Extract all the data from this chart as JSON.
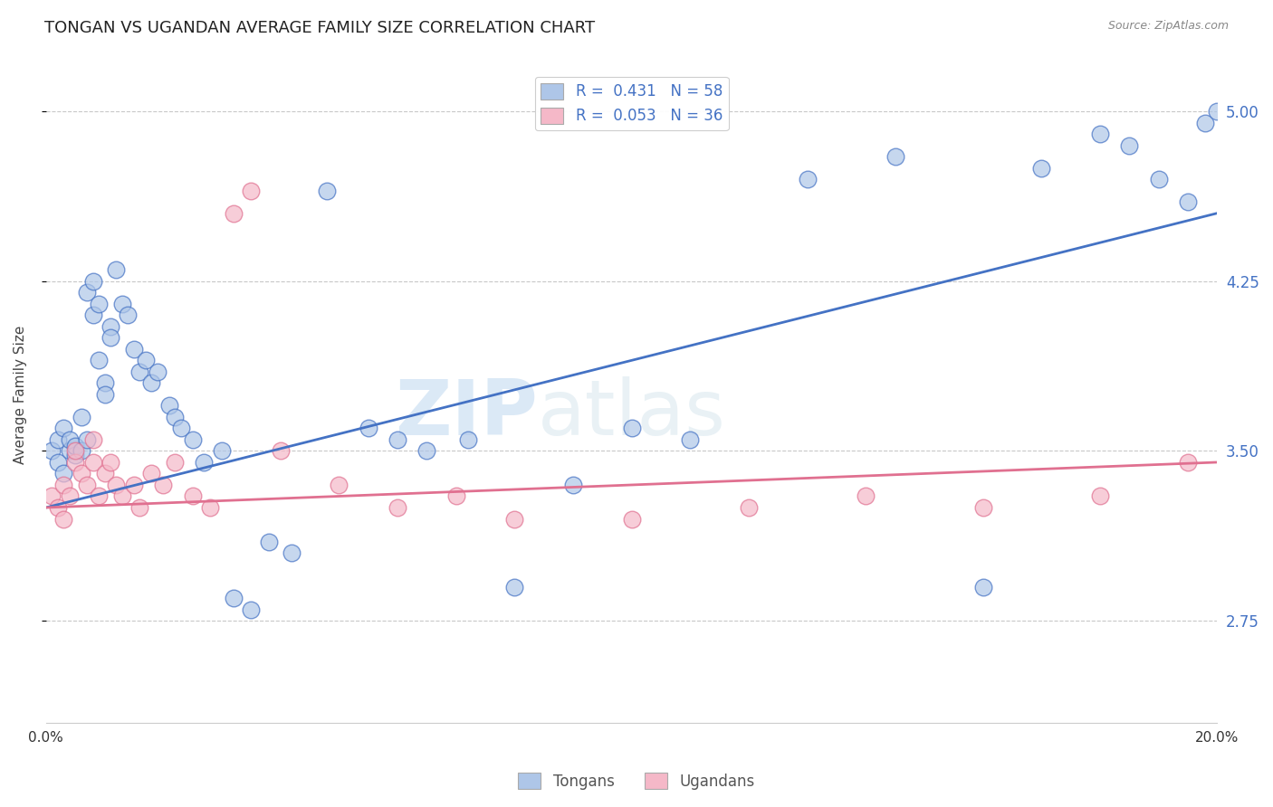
{
  "title": "TONGAN VS UGANDAN AVERAGE FAMILY SIZE CORRELATION CHART",
  "source": "Source: ZipAtlas.com",
  "ylabel": "Average Family Size",
  "yticks": [
    2.75,
    3.5,
    4.25,
    5.0
  ],
  "xlim": [
    0.0,
    0.2
  ],
  "ylim": [
    2.3,
    5.2
  ],
  "tongan_R": "0.431",
  "tongan_N": "58",
  "ugandan_R": "0.053",
  "ugandan_N": "36",
  "legend_labels": [
    "Tongans",
    "Ugandans"
  ],
  "tongan_color": "#aec6e8",
  "ugandan_color": "#f5b8c8",
  "tongan_line_color": "#4472c4",
  "ugandan_line_color": "#e07090",
  "watermark_zip": "ZIP",
  "watermark_atlas": "atlas",
  "background_color": "#ffffff",
  "grid_color": "#c8c8c8",
  "tongan_line_x": [
    0.0,
    0.2
  ],
  "tongan_line_y": [
    3.25,
    4.55
  ],
  "ugandan_line_x": [
    0.0,
    0.2
  ],
  "ugandan_line_y": [
    3.25,
    3.45
  ],
  "tongan_scatter_x": [
    0.001,
    0.002,
    0.002,
    0.003,
    0.003,
    0.004,
    0.004,
    0.005,
    0.005,
    0.006,
    0.006,
    0.007,
    0.007,
    0.008,
    0.008,
    0.009,
    0.009,
    0.01,
    0.01,
    0.011,
    0.011,
    0.012,
    0.013,
    0.014,
    0.015,
    0.016,
    0.017,
    0.018,
    0.019,
    0.021,
    0.022,
    0.023,
    0.025,
    0.027,
    0.03,
    0.032,
    0.035,
    0.038,
    0.042,
    0.048,
    0.055,
    0.06,
    0.065,
    0.072,
    0.08,
    0.09,
    0.1,
    0.11,
    0.13,
    0.145,
    0.16,
    0.17,
    0.18,
    0.185,
    0.19,
    0.195,
    0.198,
    0.2
  ],
  "tongan_scatter_y": [
    3.5,
    3.55,
    3.45,
    3.6,
    3.4,
    3.5,
    3.55,
    3.48,
    3.52,
    3.5,
    3.65,
    3.55,
    4.2,
    4.1,
    4.25,
    3.9,
    4.15,
    3.8,
    3.75,
    4.05,
    4.0,
    4.3,
    4.15,
    4.1,
    3.95,
    3.85,
    3.9,
    3.8,
    3.85,
    3.7,
    3.65,
    3.6,
    3.55,
    3.45,
    3.5,
    2.85,
    2.8,
    3.1,
    3.05,
    4.65,
    3.6,
    3.55,
    3.5,
    3.55,
    2.9,
    3.35,
    3.6,
    3.55,
    4.7,
    4.8,
    2.9,
    4.75,
    4.9,
    4.85,
    4.7,
    4.6,
    4.95,
    5.0
  ],
  "ugandan_scatter_x": [
    0.001,
    0.002,
    0.003,
    0.003,
    0.004,
    0.005,
    0.005,
    0.006,
    0.007,
    0.008,
    0.008,
    0.009,
    0.01,
    0.011,
    0.012,
    0.013,
    0.015,
    0.016,
    0.018,
    0.02,
    0.022,
    0.025,
    0.028,
    0.032,
    0.035,
    0.04,
    0.05,
    0.06,
    0.07,
    0.08,
    0.1,
    0.12,
    0.14,
    0.16,
    0.18,
    0.195
  ],
  "ugandan_scatter_y": [
    3.3,
    3.25,
    3.2,
    3.35,
    3.3,
    3.45,
    3.5,
    3.4,
    3.35,
    3.45,
    3.55,
    3.3,
    3.4,
    3.45,
    3.35,
    3.3,
    3.35,
    3.25,
    3.4,
    3.35,
    3.45,
    3.3,
    3.25,
    4.55,
    4.65,
    3.5,
    3.35,
    3.25,
    3.3,
    3.2,
    3.2,
    3.25,
    3.3,
    3.25,
    3.3,
    3.45
  ]
}
